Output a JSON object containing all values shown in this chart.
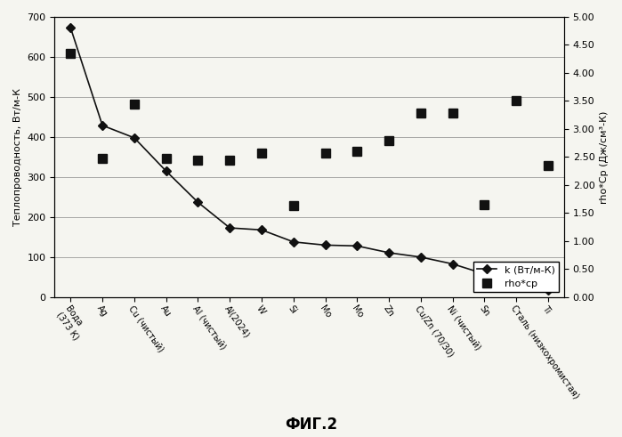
{
  "categories": [
    "Вода\n(373 К)",
    "Ag",
    "Cu (чистый)",
    "Au",
    "Al (чистый)",
    "Al(2024)",
    "W",
    "Si",
    "Mo",
    "Mo",
    "Zn",
    "Cu/Zn (70/30)",
    "Ni (чистый)",
    "Sn",
    "Сталь (низкохромистая)",
    "Ti"
  ],
  "k_values": [
    673,
    429,
    398,
    315,
    237,
    173,
    168,
    138,
    130,
    128,
    111,
    100,
    83,
    58,
    28,
    17
  ],
  "rho_cp_values": [
    4.35,
    2.47,
    3.44,
    2.47,
    2.44,
    2.44,
    2.57,
    1.64,
    2.57,
    2.6,
    2.8,
    3.29,
    3.28,
    1.65,
    3.5,
    2.35
  ],
  "left_ylabel": "Теплопроводность, Вт/м-К",
  "right_ylabel": "rho*Cp (Дж/см³-К)",
  "left_ylim": [
    0,
    700
  ],
  "right_ylim": [
    0,
    5.0
  ],
  "left_yticks": [
    0,
    100,
    200,
    300,
    400,
    500,
    600,
    700
  ],
  "right_yticks": [
    0.0,
    0.5,
    1.0,
    1.5,
    2.0,
    2.5,
    3.0,
    3.5,
    4.0,
    4.5,
    5.0
  ],
  "legend_k": "k (Вт/м-К)",
  "legend_rho": "rho*cp",
  "title": "ФИГ.2",
  "line_color": "#111111",
  "square_color": "#111111",
  "background_color": "#f5f5f0",
  "grid_color": "#888888"
}
